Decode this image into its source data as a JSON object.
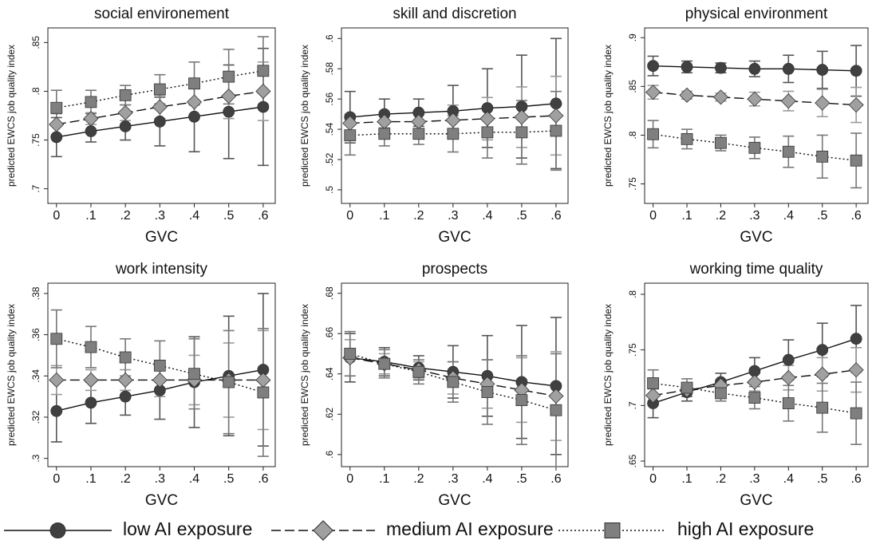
{
  "chart_data": [
    {
      "type": "line",
      "title": "social environement",
      "xlabel": "GVC",
      "ylabel": "predicted EWCS job quality index",
      "x": [
        0,
        0.1,
        0.2,
        0.3,
        0.4,
        0.5,
        0.6
      ],
      "xlim": [
        -0.025,
        0.635
      ],
      "xticks": [
        0,
        {
          "value": 0.1,
          "label": ".1"
        },
        {
          "value": 0.2,
          "label": ".2"
        },
        {
          "value": 0.3,
          "label": ".3"
        },
        {
          "value": 0.4,
          "label": ".4"
        },
        {
          "value": 0.5,
          "label": ".5"
        },
        {
          "value": 0.6,
          "label": ".6"
        }
      ],
      "ylim": [
        0.685,
        0.865
      ],
      "yticks": [
        {
          "value": 0.7,
          "label": ".7"
        },
        {
          "value": 0.75,
          "label": ".75"
        },
        {
          "value": 0.8,
          "label": ".8"
        },
        {
          "value": 0.85,
          "label": ".85"
        }
      ],
      "series": [
        {
          "name": "low AI exposure",
          "color": "#404040",
          "err_color": "#555555",
          "marker": "circle",
          "dash": "solid",
          "values": [
            0.753,
            0.759,
            0.764,
            0.769,
            0.774,
            0.779,
            0.784
          ],
          "errors": [
            0.02,
            0.011,
            0.014,
            0.025,
            0.036,
            0.048,
            0.06
          ]
        },
        {
          "name": "medium AI exposure",
          "color": "#a0a0a0",
          "err_color": "#9a9a9a",
          "marker": "diamond",
          "dash": "long",
          "values": [
            0.766,
            0.772,
            0.778,
            0.784,
            0.789,
            0.795,
            0.8
          ],
          "errors": [
            0.011,
            0.006,
            0.008,
            0.012,
            0.017,
            0.023,
            0.03
          ]
        },
        {
          "name": "high AI exposure",
          "color": "#7f7f7f",
          "err_color": "#777777",
          "marker": "square",
          "dash": "dot",
          "values": [
            0.783,
            0.789,
            0.796,
            0.802,
            0.808,
            0.815,
            0.821
          ],
          "errors": [
            0.018,
            0.012,
            0.01,
            0.015,
            0.022,
            0.028,
            0.035
          ]
        }
      ]
    },
    {
      "type": "line",
      "title": "skill and discretion",
      "xlabel": "GVC",
      "ylabel": "predicted EWCS job quality index",
      "x": [
        0,
        0.1,
        0.2,
        0.3,
        0.4,
        0.5,
        0.6
      ],
      "xlim": [
        -0.025,
        0.635
      ],
      "xticks": [
        0,
        {
          "value": 0.1,
          "label": ".1"
        },
        {
          "value": 0.2,
          "label": ".2"
        },
        {
          "value": 0.3,
          "label": ".3"
        },
        {
          "value": 0.4,
          "label": ".4"
        },
        {
          "value": 0.5,
          "label": ".5"
        },
        {
          "value": 0.6,
          "label": ".6"
        }
      ],
      "ylim": [
        0.491,
        0.607
      ],
      "yticks": [
        {
          "value": 0.5,
          "label": ".5"
        },
        {
          "value": 0.52,
          "label": ".52"
        },
        {
          "value": 0.54,
          "label": ".54"
        },
        {
          "value": 0.56,
          "label": ".56"
        },
        {
          "value": 0.58,
          "label": ".58"
        },
        {
          "value": 0.6,
          "label": ".6"
        }
      ],
      "series": [
        {
          "color": "#404040",
          "err_color": "#555555",
          "marker": "circle",
          "dash": "solid",
          "values": [
            0.548,
            0.55,
            0.551,
            0.552,
            0.554,
            0.555,
            0.557
          ],
          "errors": [
            0.017,
            0.01,
            0.009,
            0.017,
            0.026,
            0.034,
            0.043
          ]
        },
        {
          "color": "#a0a0a0",
          "err_color": "#9a9a9a",
          "marker": "diamond",
          "dash": "long",
          "values": [
            0.544,
            0.545,
            0.545,
            0.546,
            0.547,
            0.548,
            0.549
          ],
          "errors": [
            0.006,
            0.004,
            0.005,
            0.01,
            0.014,
            0.02,
            0.026
          ]
        },
        {
          "color": "#7f7f7f",
          "err_color": "#777777",
          "marker": "square",
          "dash": "dot",
          "values": [
            0.536,
            0.537,
            0.537,
            0.537,
            0.538,
            0.538,
            0.539
          ],
          "errors": [
            0.013,
            0.008,
            0.007,
            0.012,
            0.017,
            0.021,
            0.026
          ]
        }
      ]
    },
    {
      "type": "line",
      "title": "physical environment",
      "xlabel": "GVC",
      "ylabel": "predicted EWCS job quality index",
      "x": [
        0,
        0.1,
        0.2,
        0.3,
        0.4,
        0.5,
        0.6
      ],
      "xlim": [
        -0.025,
        0.635
      ],
      "xticks": [
        0,
        {
          "value": 0.1,
          "label": ".1"
        },
        {
          "value": 0.2,
          "label": ".2"
        },
        {
          "value": 0.3,
          "label": ".3"
        },
        {
          "value": 0.4,
          "label": ".4"
        },
        {
          "value": 0.5,
          "label": ".5"
        },
        {
          "value": 0.6,
          "label": ".6"
        }
      ],
      "ylim": [
        0.73,
        0.91
      ],
      "yticks": [
        {
          "value": 0.75,
          "label": ".75"
        },
        {
          "value": 0.8,
          "label": ".8"
        },
        {
          "value": 0.85,
          "label": ".85"
        },
        {
          "value": 0.9,
          "label": ".9"
        }
      ],
      "series": [
        {
          "color": "#404040",
          "err_color": "#555555",
          "marker": "circle",
          "dash": "solid",
          "values": [
            0.871,
            0.87,
            0.869,
            0.868,
            0.868,
            0.867,
            0.866
          ],
          "errors": [
            0.01,
            0.006,
            0.005,
            0.008,
            0.014,
            0.019,
            0.026
          ]
        },
        {
          "color": "#a0a0a0",
          "err_color": "#9a9a9a",
          "marker": "diamond",
          "dash": "long",
          "values": [
            0.844,
            0.841,
            0.839,
            0.837,
            0.835,
            0.833,
            0.831
          ],
          "errors": [
            0.007,
            0.004,
            0.004,
            0.007,
            0.01,
            0.014,
            0.018
          ]
        },
        {
          "color": "#7f7f7f",
          "err_color": "#777777",
          "marker": "square",
          "dash": "dot",
          "values": [
            0.801,
            0.796,
            0.792,
            0.787,
            0.783,
            0.778,
            0.774
          ],
          "errors": [
            0.014,
            0.01,
            0.008,
            0.011,
            0.016,
            0.022,
            0.028
          ]
        }
      ]
    },
    {
      "type": "line",
      "title": "work intensity",
      "xlabel": "GVC",
      "ylabel": "predicted EWCS job quality index",
      "x": [
        0,
        0.1,
        0.2,
        0.3,
        0.4,
        0.5,
        0.6
      ],
      "xlim": [
        -0.025,
        0.635
      ],
      "xticks": [
        0,
        {
          "value": 0.1,
          "label": ".1"
        },
        {
          "value": 0.2,
          "label": ".2"
        },
        {
          "value": 0.3,
          "label": ".3"
        },
        {
          "value": 0.4,
          "label": ".4"
        },
        {
          "value": 0.5,
          "label": ".5"
        },
        {
          "value": 0.6,
          "label": ".6"
        }
      ],
      "ylim": [
        0.296,
        0.385
      ],
      "yticks": [
        {
          "value": 0.3,
          "label": ".3"
        },
        {
          "value": 0.32,
          "label": ".32"
        },
        {
          "value": 0.34,
          "label": ".34"
        },
        {
          "value": 0.36,
          "label": ".36"
        },
        {
          "value": 0.38,
          "label": ".38"
        }
      ],
      "series": [
        {
          "color": "#404040",
          "err_color": "#555555",
          "marker": "circle",
          "dash": "solid",
          "values": [
            0.323,
            0.327,
            0.33,
            0.333,
            0.337,
            0.34,
            0.343
          ],
          "errors": [
            0.015,
            0.01,
            0.009,
            0.014,
            0.022,
            0.029,
            0.037
          ]
        },
        {
          "color": "#a0a0a0",
          "err_color": "#9a9a9a",
          "marker": "diamond",
          "dash": "long",
          "values": [
            0.338,
            0.338,
            0.338,
            0.338,
            0.338,
            0.338,
            0.338
          ],
          "errors": [
            0.007,
            0.005,
            0.005,
            0.008,
            0.012,
            0.018,
            0.024
          ]
        },
        {
          "color": "#7f7f7f",
          "err_color": "#777777",
          "marker": "square",
          "dash": "dot",
          "values": [
            0.358,
            0.354,
            0.349,
            0.345,
            0.341,
            0.337,
            0.332
          ],
          "errors": [
            0.014,
            0.01,
            0.009,
            0.012,
            0.017,
            0.025,
            0.031
          ]
        }
      ]
    },
    {
      "type": "line",
      "title": "prospects",
      "xlabel": "GVC",
      "ylabel": "predicted EWCS job quality index",
      "x": [
        0,
        0.1,
        0.2,
        0.3,
        0.4,
        0.5,
        0.6
      ],
      "xlim": [
        -0.025,
        0.635
      ],
      "xticks": [
        0,
        {
          "value": 0.1,
          "label": ".1"
        },
        {
          "value": 0.2,
          "label": ".2"
        },
        {
          "value": 0.3,
          "label": ".3"
        },
        {
          "value": 0.4,
          "label": ".4"
        },
        {
          "value": 0.5,
          "label": ".5"
        },
        {
          "value": 0.6,
          "label": ".6"
        }
      ],
      "ylim": [
        0.594,
        0.685
      ],
      "yticks": [
        {
          "value": 0.6,
          "label": ".6"
        },
        {
          "value": 0.62,
          "label": ".62"
        },
        {
          "value": 0.64,
          "label": ".64"
        },
        {
          "value": 0.66,
          "label": ".66"
        },
        {
          "value": 0.68,
          "label": ".68"
        }
      ],
      "series": [
        {
          "color": "#404040",
          "err_color": "#555555",
          "marker": "circle",
          "dash": "solid",
          "values": [
            0.648,
            0.646,
            0.643,
            0.641,
            0.639,
            0.636,
            0.634
          ],
          "errors": [
            0.012,
            0.007,
            0.006,
            0.013,
            0.02,
            0.028,
            0.034
          ]
        },
        {
          "color": "#a0a0a0",
          "err_color": "#9a9a9a",
          "marker": "diamond",
          "dash": "long",
          "values": [
            0.648,
            0.645,
            0.642,
            0.638,
            0.635,
            0.632,
            0.629
          ],
          "errors": [
            0.009,
            0.005,
            0.004,
            0.008,
            0.012,
            0.016,
            0.022
          ]
        },
        {
          "color": "#7f7f7f",
          "err_color": "#777777",
          "marker": "square",
          "dash": "dot",
          "values": [
            0.65,
            0.645,
            0.641,
            0.636,
            0.631,
            0.627,
            0.622
          ],
          "errors": [
            0.011,
            0.007,
            0.006,
            0.01,
            0.016,
            0.022,
            0.028
          ]
        }
      ]
    },
    {
      "type": "line",
      "title": "working time quality",
      "xlabel": "GVC",
      "ylabel": "predicted EWCS job quality index",
      "x": [
        0,
        0.1,
        0.2,
        0.3,
        0.4,
        0.5,
        0.6
      ],
      "xlim": [
        -0.025,
        0.635
      ],
      "xticks": [
        0,
        {
          "value": 0.1,
          "label": ".1"
        },
        {
          "value": 0.2,
          "label": ".2"
        },
        {
          "value": 0.3,
          "label": ".3"
        },
        {
          "value": 0.4,
          "label": ".4"
        },
        {
          "value": 0.5,
          "label": ".5"
        },
        {
          "value": 0.6,
          "label": ".6"
        }
      ],
      "ylim": [
        0.645,
        0.81
      ],
      "yticks": [
        {
          "value": 0.65,
          "label": ".65"
        },
        {
          "value": 0.7,
          "label": ".7"
        },
        {
          "value": 0.75,
          "label": ".75"
        },
        {
          "value": 0.8,
          "label": ".8"
        }
      ],
      "series": [
        {
          "color": "#404040",
          "err_color": "#555555",
          "marker": "circle",
          "dash": "solid",
          "values": [
            0.702,
            0.712,
            0.721,
            0.731,
            0.741,
            0.75,
            0.76
          ],
          "errors": [
            0.013,
            0.008,
            0.008,
            0.012,
            0.018,
            0.024,
            0.03
          ]
        },
        {
          "color": "#a0a0a0",
          "err_color": "#9a9a9a",
          "marker": "diamond",
          "dash": "long",
          "values": [
            0.709,
            0.714,
            0.718,
            0.721,
            0.725,
            0.728,
            0.732
          ],
          "errors": [
            0.009,
            0.006,
            0.005,
            0.008,
            0.011,
            0.015,
            0.02
          ]
        },
        {
          "color": "#7f7f7f",
          "err_color": "#777777",
          "marker": "square",
          "dash": "dot",
          "values": [
            0.72,
            0.716,
            0.711,
            0.707,
            0.702,
            0.698,
            0.693
          ],
          "errors": [
            0.012,
            0.008,
            0.007,
            0.01,
            0.016,
            0.022,
            0.028
          ]
        }
      ]
    }
  ]
}
